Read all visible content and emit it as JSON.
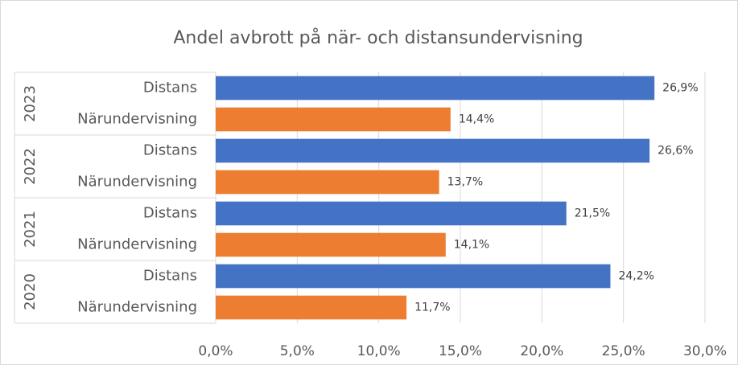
{
  "chart_data": {
    "type": "bar",
    "orientation": "horizontal",
    "title": "Andel avbrott på när- och distansundervisning",
    "groups": [
      "2023",
      "2022",
      "2021",
      "2020"
    ],
    "categories": [
      "Distans",
      "Närundervisning",
      "Distans",
      "Närundervisning",
      "Distans",
      "Närundervisning",
      "Distans",
      "Närundervisning"
    ],
    "values": [
      26.9,
      14.4,
      26.6,
      13.7,
      21.5,
      14.1,
      24.2,
      11.7
    ],
    "value_labels": [
      "26,9%",
      "14,4%",
      "26,6%",
      "13,7%",
      "21,5%",
      "14,1%",
      "24,2%",
      "11,7%"
    ],
    "colors": [
      "#4472c4",
      "#ed7d31",
      "#4472c4",
      "#ed7d31",
      "#4472c4",
      "#ed7d31",
      "#4472c4",
      "#ed7d31"
    ],
    "xlim": [
      0,
      30
    ],
    "xticks": [
      {
        "value": 0,
        "label": "0,0%"
      },
      {
        "value": 5,
        "label": "5,0%"
      },
      {
        "value": 10,
        "label": "10,0%"
      },
      {
        "value": 15,
        "label": "15,0%"
      },
      {
        "value": 20,
        "label": "20,0%"
      },
      {
        "value": 25,
        "label": "25,0%"
      },
      {
        "value": 30,
        "label": "30,0%"
      }
    ],
    "grid": true
  }
}
